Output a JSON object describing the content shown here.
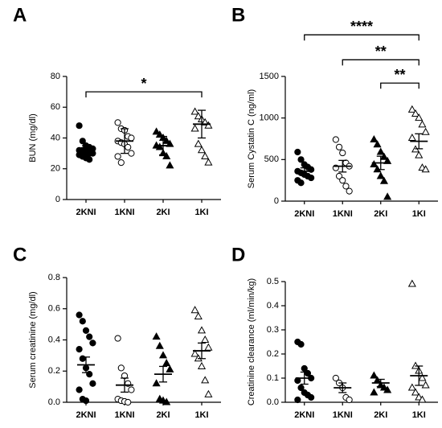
{
  "chart_data": [
    {
      "type": "dot",
      "label": "A",
      "ylabel": "BUN (mg/dl)",
      "categories": [
        "2KNI",
        "1KNI",
        "2KI",
        "1KI"
      ],
      "markers": [
        "circle-filled",
        "circle-open",
        "triangle-filled",
        "triangle-open"
      ],
      "points": [
        [
          48,
          38,
          35,
          34,
          33,
          32,
          32,
          31,
          30,
          30,
          29,
          28,
          27,
          26
        ],
        [
          50,
          46,
          45,
          41,
          40,
          38,
          37,
          36,
          34,
          30,
          28,
          24
        ],
        [
          44,
          42,
          40,
          38,
          36,
          35,
          34,
          30,
          28,
          22
        ],
        [
          57,
          54,
          52,
          50,
          48,
          46,
          36,
          32,
          28,
          24
        ]
      ],
      "mean": [
        32,
        38,
        35,
        49
      ],
      "error": [
        3,
        8,
        6,
        9
      ],
      "ylim": [
        0,
        80
      ],
      "yticks": [
        0,
        20,
        40,
        60,
        80
      ],
      "annotations": [
        {
          "from": 0,
          "to": 3,
          "y": 70,
          "label": "*"
        }
      ]
    },
    {
      "type": "dot",
      "label": "B",
      "ylabel": "Serum Cystatin C (ng/ml)",
      "categories": [
        "2KNI",
        "1KNI",
        "2KI",
        "1KI"
      ],
      "markers": [
        "circle-filled",
        "circle-open",
        "triangle-filled",
        "triangle-open"
      ],
      "points": [
        [
          590,
          500,
          440,
          410,
          380,
          360,
          340,
          320,
          300,
          280,
          250,
          220
        ],
        [
          740,
          650,
          580,
          460,
          420,
          400,
          300,
          250,
          180,
          120
        ],
        [
          740,
          680,
          590,
          530,
          480,
          440,
          380,
          300,
          240,
          50
        ],
        [
          1100,
          1050,
          1000,
          920,
          830,
          760,
          620,
          550,
          400,
          380
        ]
      ],
      "mean": [
        360,
        420,
        460,
        720
      ],
      "error": [
        40,
        70,
        80,
        90
      ],
      "ylim": [
        0,
        1500
      ],
      "yticks": [
        0,
        500,
        1000,
        1500
      ],
      "annotations": [
        {
          "from": 0,
          "to": 3,
          "y": 2000,
          "label": "****"
        },
        {
          "from": 1,
          "to": 3,
          "y": 1700,
          "label": "**"
        },
        {
          "from": 2,
          "to": 3,
          "y": 1420,
          "label": "**"
        }
      ]
    },
    {
      "type": "dot",
      "label": "C",
      "ylabel": "Serum creatinine (mg/dl)",
      "categories": [
        "2KNI",
        "1KNI",
        "2KI",
        "1KI"
      ],
      "markers": [
        "circle-filled",
        "circle-open",
        "triangle-filled",
        "triangle-open"
      ],
      "points": [
        [
          0.56,
          0.52,
          0.46,
          0.42,
          0.38,
          0.34,
          0.28,
          0.22,
          0.18,
          0.12,
          0.08,
          0.02,
          0.01
        ],
        [
          0.41,
          0.22,
          0.17,
          0.12,
          0.08,
          0.02,
          0.01,
          0.005,
          0
        ],
        [
          0.42,
          0.36,
          0.3,
          0.25,
          0.21,
          0.12,
          0.02,
          0.01,
          0
        ],
        [
          0.59,
          0.55,
          0.46,
          0.4,
          0.35,
          0.31,
          0.28,
          0.23,
          0.14,
          0.05
        ]
      ],
      "mean": [
        0.24,
        0.11,
        0.18,
        0.33
      ],
      "error": [
        0.05,
        0.045,
        0.05,
        0.05
      ],
      "ylim": [
        0,
        0.8
      ],
      "yticks": [
        {
          "value": 0,
          "label": "0.0"
        },
        0.2,
        0.4,
        0.6,
        0.8
      ],
      "annotations": []
    },
    {
      "type": "dot",
      "label": "D",
      "ylabel": "Creatinine clearance (ml/min/kg)",
      "categories": [
        "2KNI",
        "1KNI",
        "2KI",
        "1KI"
      ],
      "markers": [
        "circle-filled",
        "circle-open",
        "triangle-filled",
        "triangle-open"
      ],
      "points": [
        [
          0.25,
          0.24,
          0.14,
          0.12,
          0.1,
          0.09,
          0.06,
          0.04,
          0.03,
          0.02,
          0.01
        ],
        [
          0.1,
          0.08,
          0.06,
          0.02,
          0.01
        ],
        [
          0.11,
          0.09,
          0.07,
          0.06,
          0.05,
          0.04
        ],
        [
          0.49,
          0.15,
          0.13,
          0.1,
          0.07,
          0.06,
          0.04,
          0.02,
          0.01
        ]
      ],
      "mean": [
        0.1,
        0.06,
        0.08,
        0.11
      ],
      "error": [
        0.025,
        0.02,
        0.015,
        0.04
      ],
      "ylim": [
        0,
        0.5
      ],
      "yticks": [
        {
          "value": 0,
          "label": "0.0"
        },
        0.1,
        0.2,
        0.3,
        0.4,
        0.5
      ],
      "annotations": []
    }
  ]
}
